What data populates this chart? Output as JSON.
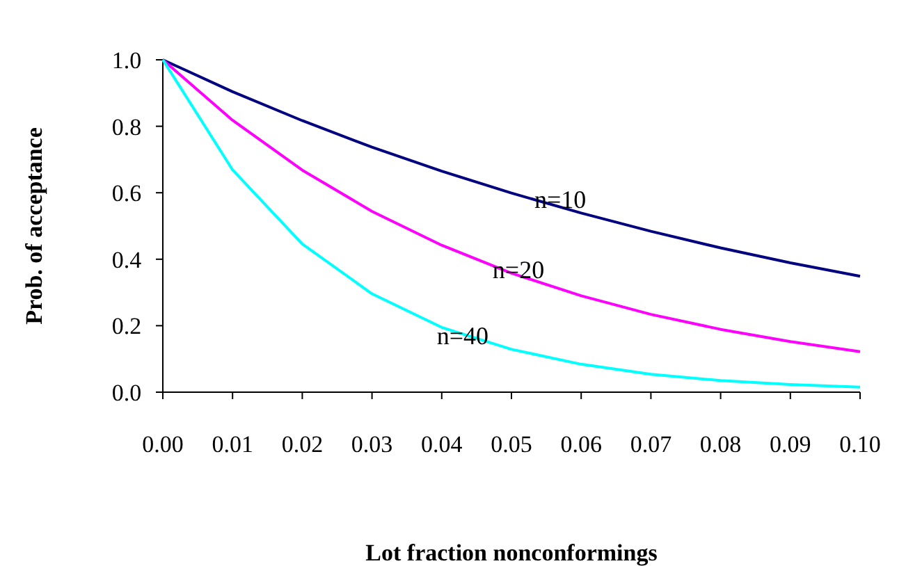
{
  "chart_data": {
    "type": "line",
    "xlabel": "Lot fraction nonconformings",
    "ylabel": "Prob. of acceptance",
    "x": [
      0,
      0.01,
      0.02,
      0.03,
      0.04,
      0.05,
      0.06,
      0.07,
      0.08,
      0.09,
      0.1
    ],
    "series": [
      {
        "color": "#000080",
        "values": [
          1,
          0.904,
          0.817,
          0.737,
          0.665,
          0.599,
          0.539,
          0.484,
          0.434,
          0.389,
          0.349
        ]
      },
      {
        "color": "#ff00ff",
        "values": [
          1,
          0.818,
          0.668,
          0.544,
          0.442,
          0.358,
          0.29,
          0.234,
          0.189,
          0.152,
          0.122
        ]
      },
      {
        "color": "#00ffff",
        "values": [
          1,
          0.669,
          0.446,
          0.296,
          0.195,
          0.129,
          0.084,
          0.054,
          0.035,
          0.023,
          0.015
        ]
      }
    ],
    "annotations": [
      {
        "text": "n=10",
        "x": 0.057,
        "y": 0.58
      },
      {
        "text": "n=20",
        "x": 0.051,
        "y": 0.37
      },
      {
        "text": "n=40",
        "x": 0.043,
        "y": 0.17
      }
    ],
    "xlim": [
      0,
      0.1
    ],
    "ylim": [
      0,
      1
    ],
    "xticks": [
      {
        "value": 0,
        "label": "0.00"
      },
      {
        "value": 0.01,
        "label": "0.01"
      },
      {
        "value": 0.02,
        "label": "0.02"
      },
      {
        "value": 0.03,
        "label": "0.03"
      },
      {
        "value": 0.04,
        "label": "0.04"
      },
      {
        "value": 0.05,
        "label": "0.05"
      },
      {
        "value": 0.06,
        "label": "0.06"
      },
      {
        "value": 0.07,
        "label": "0.07"
      },
      {
        "value": 0.08,
        "label": "0.08"
      },
      {
        "value": 0.09,
        "label": "0.09"
      },
      {
        "value": 0.1,
        "label": "0.10"
      }
    ],
    "yticks": [
      {
        "value": 0,
        "label": "0.0"
      },
      {
        "value": 0.2,
        "label": "0.2"
      },
      {
        "value": 0.4,
        "label": "0.4"
      },
      {
        "value": 0.6,
        "label": "0.6"
      },
      {
        "value": 0.8,
        "label": "0.8"
      },
      {
        "value": 1,
        "label": "1.0"
      }
    ],
    "grid": false,
    "legend": false,
    "marker": "none",
    "line_style": "solid"
  }
}
